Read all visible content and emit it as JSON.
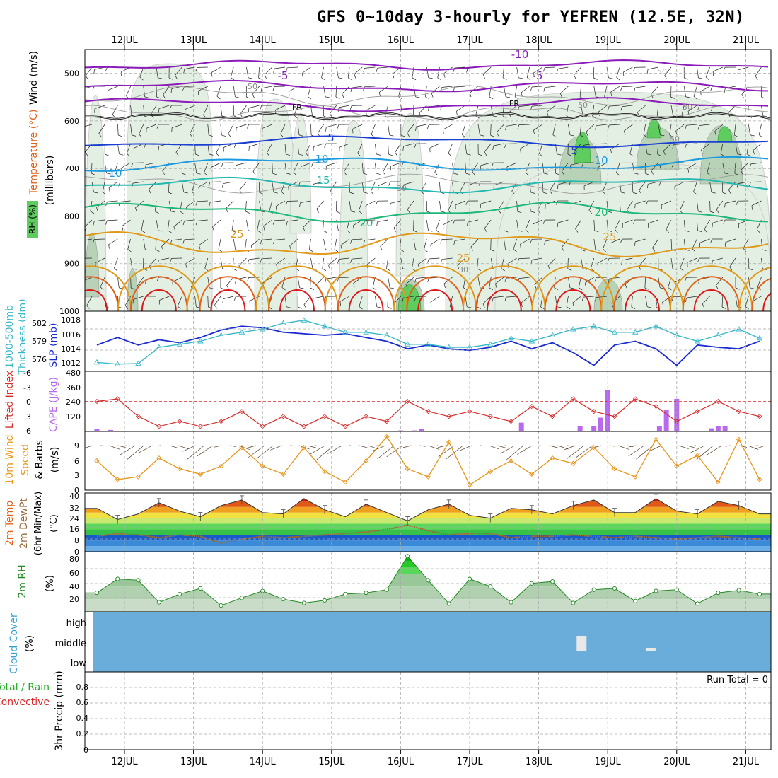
{
  "title": "GFS 0~10day 3-hourly for YEFREN (12.5E, 32N)",
  "date_labels": [
    "12JUL",
    "13JUL",
    "14JUL",
    "15JUL",
    "16JUL",
    "17JUL",
    "18JUL",
    "19JUL",
    "20JUL",
    "21JUL"
  ],
  "colors": {
    "grid": "#aaaaaa",
    "axis": "#000000",
    "rh_fill": "#e4efe4",
    "rh_mid": "#b7d2b7",
    "rh_dark": "#8fb08f",
    "rh_high": "#5fcc5f",
    "wind_iso": "#9a9a9a",
    "wind_purple": "#8a1bb8",
    "freezing": "#000000",
    "temp_5": "#1a3fd1",
    "temp_10": "#1a9ae0",
    "temp_15": "#22b8b0",
    "temp_20": "#1db878",
    "temp_25": "#e09a1a",
    "temp_30": "#e0601a",
    "temp_35": "#dd1a1a",
    "slp": "#1a2ad1",
    "thickness": "#3ab8c8",
    "li": "#d62a2a",
    "cape": "#b86aee",
    "wind10": "#e8951a",
    "barb": "#5a3f2a",
    "rh2m_line": "#228822",
    "cloud": "#6aadda",
    "cloud_gap": "#e8e8e8"
  },
  "panels": {
    "upper_air": {
      "ylabels": [
        "Wind (m/s)",
        "Temperature (°C)",
        "(millibars)",
        "RH (%)"
      ],
      "y_ticks": [
        "500",
        "600",
        "700",
        "800",
        "900",
        "1000"
      ],
      "contour_labels": [
        "-10",
        "-5",
        "-5",
        "FR",
        "FR",
        "5",
        "5",
        "10",
        "10",
        "10",
        "15",
        "20",
        "20",
        "25",
        "25",
        "25",
        "30",
        "30",
        "50",
        "50",
        "50",
        "50",
        "30"
      ]
    },
    "slp_thickness": {
      "ylabels": [
        "1000-500mb",
        "Thickness (dm)",
        "SLP (mb)"
      ],
      "left_ticks": [
        "582",
        "579",
        "576"
      ],
      "right_ticks": [
        "1018",
        "1016",
        "1014",
        "1012"
      ]
    },
    "li_cape": {
      "ylabels": [
        "Lifted Index",
        "CAPE (J/kg)"
      ],
      "left_ticks": [
        "-6",
        "-3",
        "0",
        "3",
        "6"
      ],
      "right_ticks": [
        "480",
        "360",
        "240",
        "120"
      ]
    },
    "wind10": {
      "ylabels": [
        "10m Wind",
        "Speed",
        "& Barbs",
        "(m/s)"
      ],
      "ticks": [
        "9",
        "6",
        "3",
        "0"
      ]
    },
    "temp2m": {
      "ylabels": [
        "2m Temp",
        "2m DewPt",
        "(6hr Min/Max)",
        "(°C)"
      ],
      "ticks": [
        "40",
        "32",
        "24",
        "16",
        "8",
        "0"
      ]
    },
    "rh2m": {
      "ylabels": [
        "2m RH",
        "(%)"
      ],
      "ticks": [
        "80",
        "60",
        "40",
        "20"
      ]
    },
    "cloud": {
      "ylabels": [
        "Cloud Cover",
        "(%)"
      ],
      "ticks": [
        "high",
        "middle",
        "low"
      ]
    },
    "precip": {
      "ylabels": [
        "Total / Rain",
        "Convective",
        "3hr Precip (mm)"
      ],
      "ticks": [
        "0.8",
        "0.6",
        "0.4",
        "0.2",
        "0"
      ],
      "run_total": "Run Total = 0"
    }
  },
  "chart_data": [
    {
      "type": "line",
      "panel": "Sea level pressure and 1000-500mb thickness",
      "series": [
        {
          "name": "SLP (mb)",
          "unit": "mb",
          "days": [
            11.6,
            11.9,
            12.2,
            12.5,
            12.8,
            13.1,
            13.4,
            13.7,
            14.0,
            14.3,
            14.6,
            14.9,
            15.2,
            15.5,
            15.8,
            16.1,
            16.4,
            16.7,
            17.0,
            17.3,
            17.6,
            17.9,
            18.2,
            18.5,
            18.8,
            19.1,
            19.4,
            19.7,
            20.0,
            20.3,
            20.6,
            20.9,
            21.2
          ],
          "values": [
            1014.5,
            1015.5,
            1014.5,
            1015.2,
            1014.8,
            1015.5,
            1016.5,
            1017.0,
            1016.8,
            1016.2,
            1016.0,
            1015.8,
            1016.0,
            1015.5,
            1015.0,
            1014.0,
            1014.5,
            1014.0,
            1013.8,
            1014.2,
            1015.0,
            1014.0,
            1014.8,
            1013.5,
            1011.8,
            1014.5,
            1015.0,
            1014.0,
            1011.8,
            1014.5,
            1014.2,
            1014.0,
            1015.0
          ]
        },
        {
          "name": "1000-500mb Thickness (dm)",
          "unit": "dm",
          "days": [
            11.6,
            11.9,
            12.2,
            12.5,
            12.8,
            13.1,
            13.4,
            13.7,
            14.0,
            14.3,
            14.6,
            14.9,
            15.2,
            15.5,
            15.8,
            16.1,
            16.4,
            16.7,
            17.0,
            17.3,
            17.6,
            17.9,
            18.2,
            18.5,
            18.8,
            19.1,
            19.4,
            19.7,
            20.0,
            20.3,
            20.6,
            20.9,
            21.2
          ],
          "values": [
            575.5,
            575.2,
            575.3,
            578.0,
            578.5,
            579.0,
            580.0,
            580.5,
            581.0,
            582.0,
            582.5,
            581.5,
            580.5,
            580.5,
            580.0,
            578.5,
            578.5,
            578.0,
            578.0,
            578.5,
            579.5,
            579.0,
            580.0,
            581.0,
            581.5,
            580.5,
            580.5,
            581.5,
            580.0,
            579.0,
            580.0,
            581.0,
            579.5
          ]
        }
      ]
    },
    {
      "type": "bar",
      "panel": "Lifted Index and CAPE",
      "series": [
        {
          "name": "CAPE (J/kg)",
          "unit": "J/kg",
          "days": [
            11.6,
            11.8,
            16.0,
            16.2,
            16.3,
            17.75,
            18.6,
            18.8,
            18.9,
            19.0,
            19.75,
            19.85,
            20.0,
            20.5,
            20.6,
            20.7
          ],
          "values": [
            20,
            12,
            8,
            8,
            22,
            70,
            45,
            45,
            110,
            330,
            45,
            170,
            260,
            25,
            45,
            45
          ]
        },
        {
          "name": "Lifted Index",
          "days": [
            11.6,
            11.9,
            12.2,
            12.5,
            12.8,
            13.1,
            13.4,
            13.7,
            14.0,
            14.3,
            14.6,
            14.9,
            15.2,
            15.5,
            15.8,
            16.1,
            16.4,
            16.7,
            17.0,
            17.3,
            17.6,
            17.9,
            18.2,
            18.5,
            18.8,
            19.1,
            19.4,
            19.7,
            20.0,
            20.3,
            20.6,
            20.9,
            21.2
          ],
          "values": [
            0,
            -0.5,
            3,
            5,
            4,
            5,
            4,
            2,
            5,
            3,
            5,
            3,
            5,
            3,
            4,
            0,
            2,
            3,
            2,
            3,
            4,
            1,
            3,
            -0.5,
            2,
            3,
            -0.5,
            1,
            4,
            2,
            0,
            2,
            3
          ]
        }
      ]
    },
    {
      "type": "line",
      "panel": "10m Wind Speed",
      "series": [
        {
          "name": "10m Wind Speed (m/s)",
          "unit": "m/s",
          "days": [
            11.6,
            11.9,
            12.2,
            12.5,
            12.8,
            13.1,
            13.4,
            13.7,
            14.0,
            14.3,
            14.6,
            14.9,
            15.2,
            15.5,
            15.8,
            16.1,
            16.4,
            16.7,
            17.0,
            17.3,
            17.6,
            17.9,
            18.2,
            18.5,
            18.8,
            19.1,
            19.4,
            19.7,
            20.0,
            20.3,
            20.6,
            20.9,
            21.2
          ],
          "values": [
            5.5,
            2.0,
            2.5,
            6.0,
            4.0,
            3.0,
            4.5,
            8.0,
            4.5,
            3.0,
            8.0,
            3.5,
            1.5,
            5.5,
            10.0,
            4.0,
            2.5,
            9.0,
            1.0,
            3.5,
            5.5,
            3.0,
            6.0,
            5.0,
            8.0,
            4.0,
            2.5,
            9.5,
            4.5,
            6.5,
            1.5,
            9.5,
            2.0
          ]
        }
      ]
    },
    {
      "type": "area",
      "panel": "2m Temperature and Dew Point",
      "series": [
        {
          "name": "2m Temp (°C)",
          "unit": "°C",
          "days": [
            11.6,
            11.9,
            12.2,
            12.5,
            12.8,
            13.1,
            13.4,
            13.7,
            14.0,
            14.3,
            14.6,
            14.9,
            15.2,
            15.5,
            15.8,
            16.1,
            16.4,
            16.7,
            17.0,
            17.3,
            17.6,
            17.9,
            18.2,
            18.5,
            18.8,
            19.1,
            19.4,
            19.7,
            20.0,
            20.3,
            20.6,
            20.9,
            21.2
          ],
          "values": [
            31,
            23,
            27,
            35,
            29,
            25,
            33,
            37,
            28,
            27,
            38,
            30,
            25,
            34,
            28,
            22,
            30,
            34,
            26,
            24,
            31,
            30,
            27,
            33,
            37,
            28,
            28,
            38,
            29,
            27,
            36,
            33,
            27
          ]
        },
        {
          "name": "2m DewPt (°C)",
          "unit": "°C",
          "days": [
            11.6,
            11.9,
            12.2,
            12.5,
            12.8,
            13.1,
            13.4,
            13.7,
            14.0,
            14.3,
            14.6,
            14.9,
            15.2,
            15.5,
            15.8,
            16.1,
            16.4,
            16.7,
            17.0,
            17.3,
            17.6,
            17.9,
            18.2,
            18.5,
            18.8,
            19.1,
            19.4,
            19.7,
            20.0,
            20.3,
            20.6,
            20.9,
            21.2
          ],
          "values": [
            11,
            13,
            12,
            10,
            12,
            11,
            6,
            9,
            11,
            10,
            11,
            12,
            13,
            14,
            16,
            19,
            15,
            12,
            13,
            13,
            10,
            11,
            11,
            12,
            11,
            10,
            11,
            10,
            9,
            10,
            11,
            10,
            9
          ]
        }
      ]
    },
    {
      "type": "area",
      "panel": "2m Relative Humidity",
      "series": [
        {
          "name": "2m RH (%)",
          "unit": "%",
          "days": [
            11.6,
            11.9,
            12.2,
            12.5,
            12.8,
            13.1,
            13.4,
            13.7,
            14.0,
            14.3,
            14.6,
            14.9,
            15.2,
            15.5,
            15.8,
            16.1,
            16.4,
            16.7,
            17.0,
            17.3,
            17.6,
            17.9,
            18.2,
            18.5,
            18.8,
            19.1,
            19.4,
            19.7,
            20.0,
            20.3,
            20.6,
            20.9,
            21.2
          ],
          "values": [
            30,
            52,
            50,
            15,
            28,
            37,
            10,
            22,
            33,
            20,
            14,
            18,
            28,
            30,
            35,
            88,
            50,
            13,
            52,
            40,
            15,
            45,
            48,
            14,
            35,
            37,
            17,
            33,
            35,
            13,
            30,
            34,
            28
          ]
        }
      ]
    },
    {
      "type": "bar",
      "panel": "Cloud Cover",
      "categories": [
        "high",
        "middle",
        "low"
      ],
      "notes_cells": [
        {
          "level": "middle",
          "day": 18.6,
          "cover": "clear"
        },
        {
          "level": "middle",
          "day": 19.6,
          "cover": "clear"
        }
      ]
    },
    {
      "type": "bar",
      "panel": "3hr Precip (mm)",
      "series": [
        {
          "name": "Total / Rain",
          "values": []
        },
        {
          "name": "Convective",
          "values": []
        }
      ],
      "ylim": [
        0,
        1.0
      ]
    }
  ]
}
